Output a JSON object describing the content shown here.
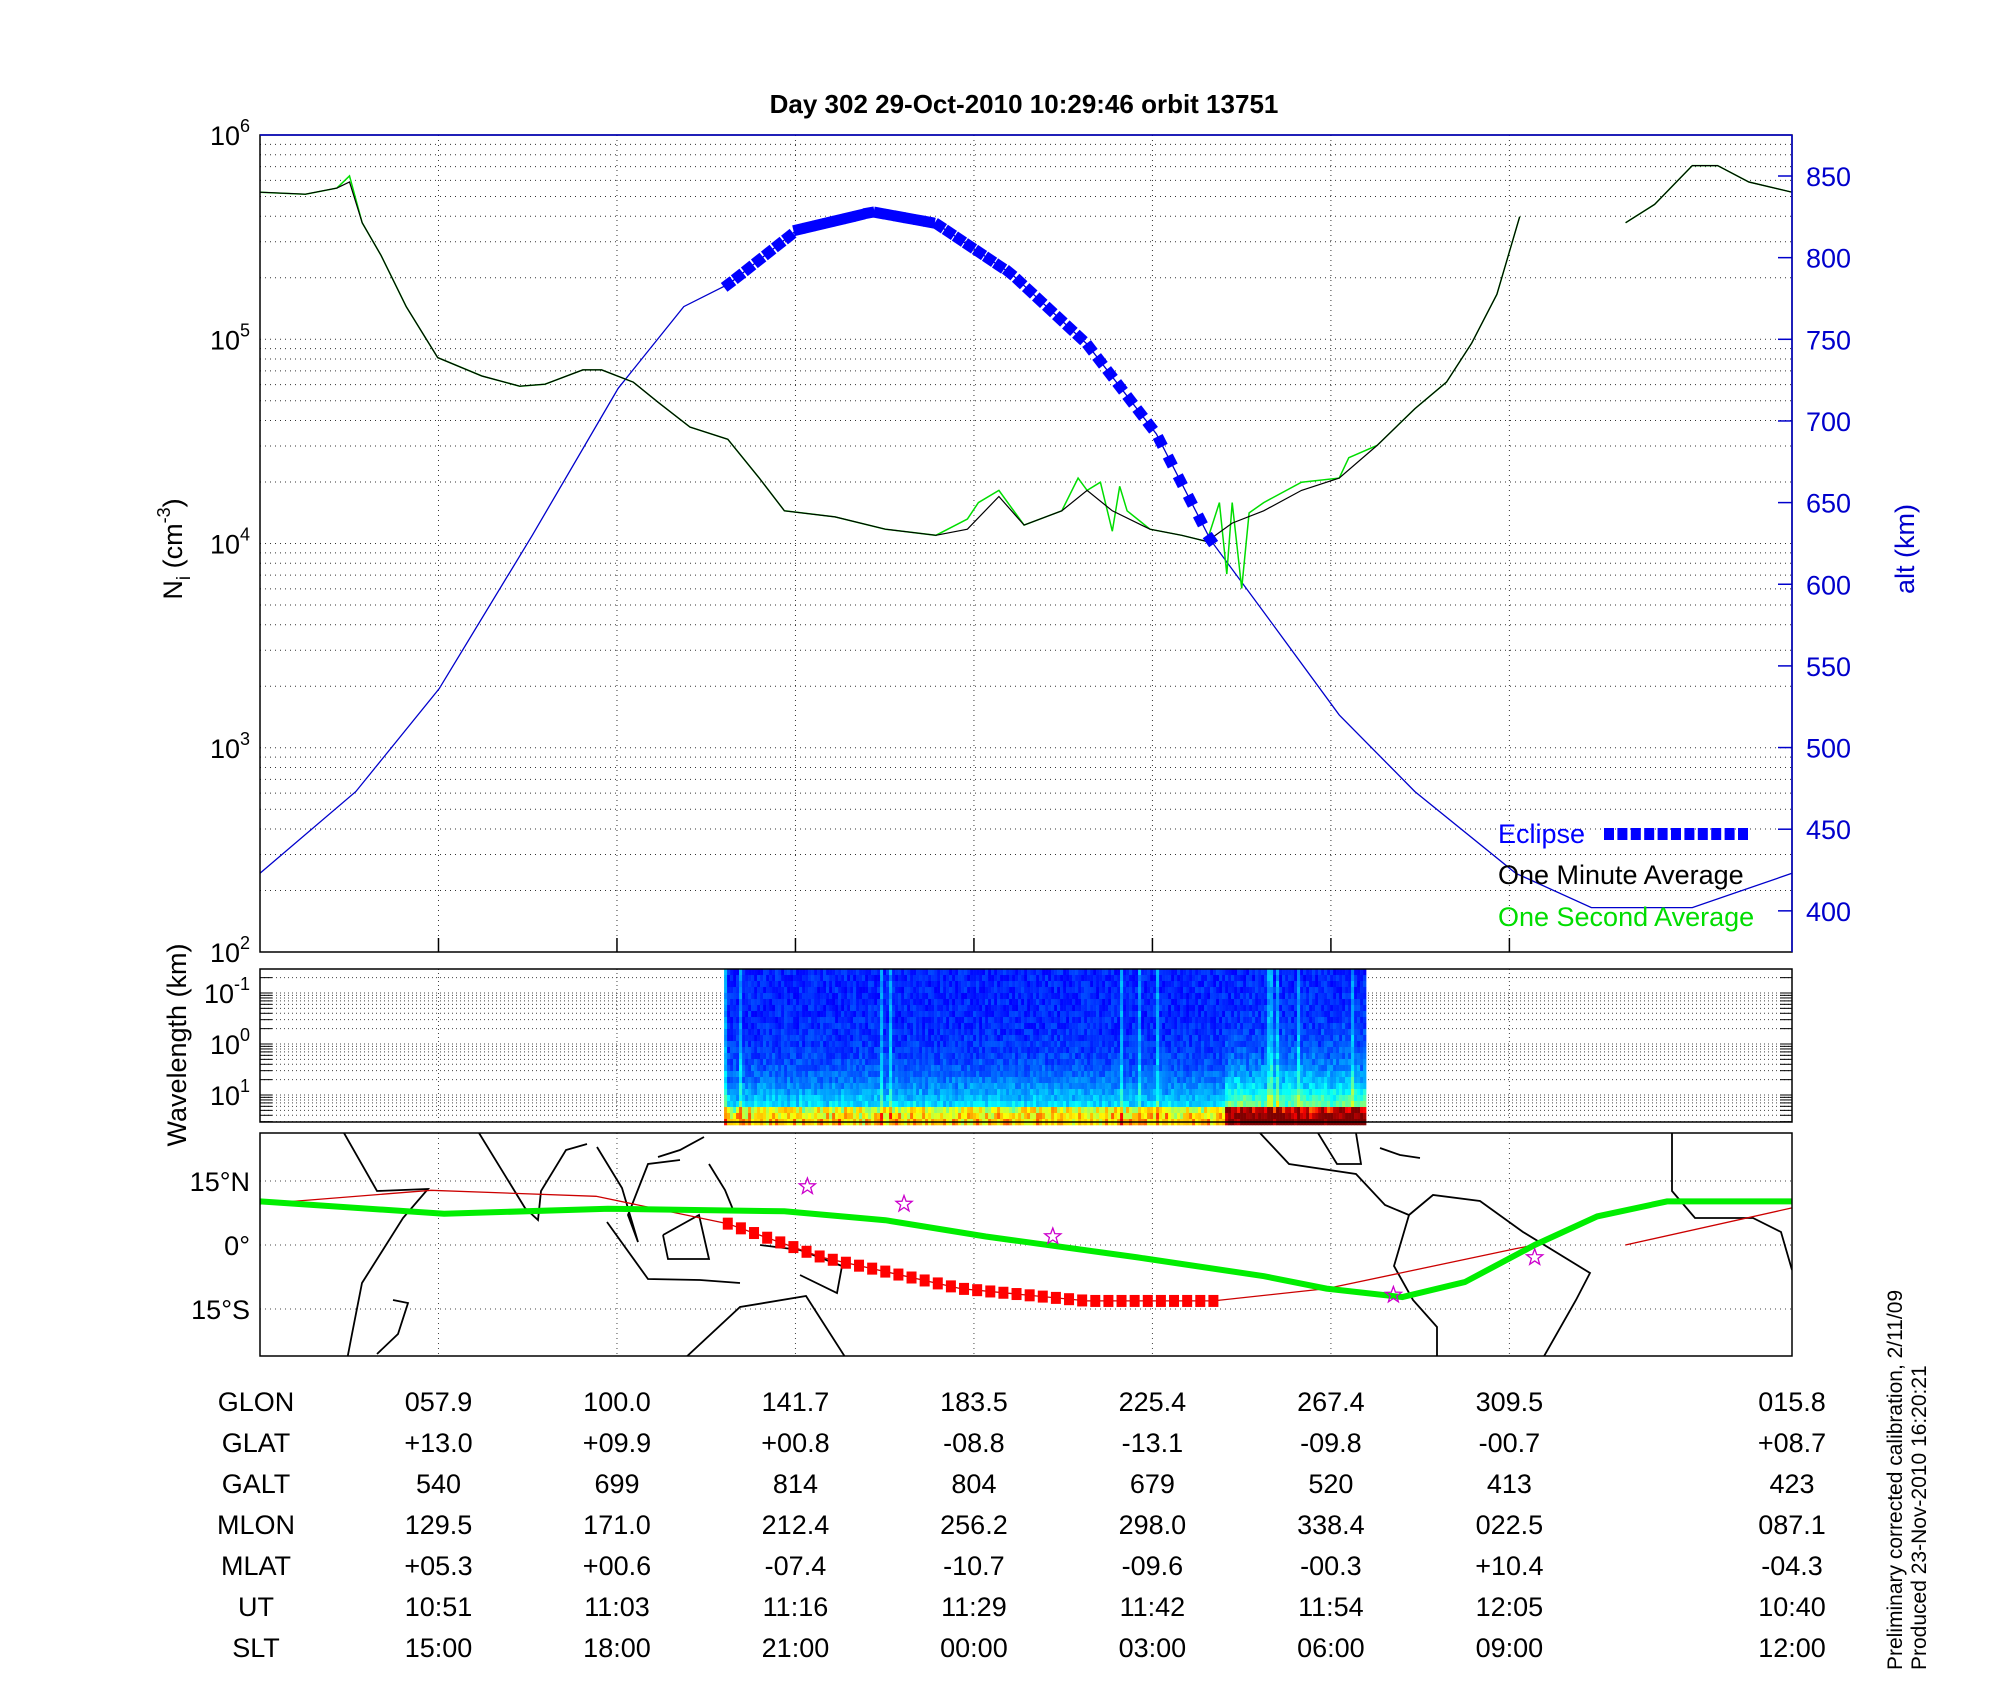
{
  "title": "Day 302  29-Oct-2010 10:29:46   orbit 13751",
  "footer": {
    "line1": "Preliminary corrected calibration, 2/11/09",
    "line2": "Produced 23-Nov-2010 16:20:21"
  },
  "colors": {
    "one_minute": "#000000",
    "one_second": "#00dd00",
    "altitude": "#0000cc",
    "eclipse": "#0000ff",
    "track": "#cc0000",
    "eclipse_track": "#ff0000",
    "mag_equator": "#00ee00",
    "stars": "#cc00cc"
  },
  "chart_data": [
    {
      "type": "line",
      "name": "density-altitude",
      "xlabel": "",
      "xlim": [
        0,
        103
      ],
      "xticks": [
        12,
        24,
        36,
        48,
        60,
        72,
        84
      ],
      "ylabel": "N_i (cm^-3)",
      "ylabel_parts": {
        "base": "N",
        "sub": "i",
        "unit": " (cm",
        "exp": "-3",
        "close": ")"
      },
      "yscale": "log",
      "ylim_log10": [
        2,
        6
      ],
      "yticks": [
        {
          "base": "10",
          "exp": "6"
        },
        {
          "base": "10",
          "exp": "5"
        },
        {
          "base": "10",
          "exp": "4"
        },
        {
          "base": "10",
          "exp": "3"
        },
        {
          "base": "10",
          "exp": "2"
        }
      ],
      "y2label": "alt (km)",
      "y2lim": [
        375,
        875
      ],
      "y2ticks": [
        "850",
        "800",
        "750",
        "700",
        "650",
        "600",
        "550",
        "500",
        "450",
        "400"
      ],
      "legend": {
        "position": "bottom-right",
        "eclipse": "Eclipse",
        "one_minute": "One Minute Average",
        "one_second": "One Second Average"
      },
      "series": [
        {
          "name": "One Minute Average",
          "x": [
            0,
            3.05,
            5.17,
            6.02,
            6.87,
            8.14,
            9.83,
            11.95,
            14.92,
            17.46,
            19.16,
            21.7,
            22.97,
            25.09,
            26.79,
            28.91,
            31.45,
            33.57,
            35.26,
            38.66,
            42.05,
            45.44,
            47.56,
            49.68,
            51.37,
            53.91,
            55.61,
            57.3,
            59.84,
            61.97,
            63.66,
            65.36,
            67.48,
            70.02,
            72.56,
            75.1,
            77.65,
            79.77,
            81.46,
            83.16,
            84.69,
            null,
            91.81,
            93.76,
            96.3,
            98.0,
            100.1,
            103
          ],
          "log10_ni": [
            5.72,
            5.71,
            5.74,
            5.77,
            5.57,
            5.41,
            5.16,
            4.91,
            4.82,
            4.77,
            4.78,
            4.85,
            4.85,
            4.79,
            4.69,
            4.57,
            4.51,
            4.32,
            4.16,
            4.13,
            4.07,
            4.04,
            4.07,
            4.23,
            4.09,
            4.16,
            4.26,
            4.16,
            4.07,
            4.04,
            4.01,
            4.1,
            4.16,
            4.26,
            4.32,
            4.48,
            4.66,
            4.79,
            4.98,
            5.22,
            5.6,
            null,
            5.57,
            5.66,
            5.85,
            5.85,
            5.77,
            5.72
          ]
        },
        {
          "name": "One Second Average",
          "x": [
            0,
            3.05,
            5.17,
            6.02,
            6.87,
            8.14,
            9.83,
            11.95,
            14.92,
            17.46,
            19.16,
            21.7,
            22.97,
            25.09,
            26.79,
            28.91,
            31.45,
            33.57,
            35.26,
            38.66,
            42.05,
            45.44,
            47.56,
            48.3,
            49.68,
            51.37,
            53.91,
            55.0,
            55.61,
            56.5,
            57.3,
            57.8,
            58.3,
            59.84,
            61.97,
            63.66,
            64.5,
            65.0,
            65.36,
            66.0,
            66.5,
            67.48,
            70.02,
            72.56,
            73.2,
            75.1,
            77.65,
            79.77,
            81.46,
            83.16,
            84.69,
            null,
            91.81,
            93.76,
            96.3,
            98.0,
            100.1,
            103
          ],
          "log10_ni": [
            5.72,
            5.71,
            5.74,
            5.8,
            5.57,
            5.41,
            5.16,
            4.91,
            4.82,
            4.77,
            4.78,
            4.85,
            4.85,
            4.79,
            4.69,
            4.57,
            4.51,
            4.32,
            4.16,
            4.13,
            4.07,
            4.04,
            4.12,
            4.2,
            4.26,
            4.09,
            4.16,
            4.32,
            4.26,
            4.3,
            4.06,
            4.28,
            4.16,
            4.07,
            4.04,
            4.01,
            4.2,
            3.85,
            4.2,
            3.78,
            4.15,
            4.2,
            4.3,
            4.32,
            4.42,
            4.48,
            4.66,
            4.79,
            4.98,
            5.22,
            5.6,
            null,
            5.57,
            5.66,
            5.85,
            5.85,
            5.77,
            5.72
          ]
        },
        {
          "name": "Altitude",
          "axis": "right",
          "x": [
            0,
            6.44,
            12.04,
            18.31,
            24.08,
            28.49,
            31.54,
            36.12,
            41.21,
            45.44,
            50.53,
            55.61,
            60.27,
            63.92,
            67.48,
            72.56,
            77.65,
            84.43,
            89.51,
            96.3,
            103
          ],
          "alt_km": [
            423,
            473,
            536,
            630,
            720,
            770,
            784,
            817,
            828,
            821,
            790,
            747,
            692,
            627,
            583,
            520,
            473,
            423,
            402,
            402,
            423
          ]
        }
      ],
      "eclipse_range_x": [
        31.5,
        63.9
      ]
    },
    {
      "type": "heatmap",
      "name": "spectrogram",
      "ylabel": "Wavelength (km)",
      "yticks": [
        {
          "base": "10",
          "exp": "-1"
        },
        {
          "base": "10",
          "exp": "0"
        },
        {
          "base": "10",
          "exp": "1"
        }
      ],
      "data_range_x": [
        31.2,
        74.2
      ],
      "colormap": "jet"
    },
    {
      "type": "line",
      "name": "ground-track-map",
      "ylim": [
        -26,
        26
      ],
      "yticks": [
        "15°N",
        "0°",
        "15°S"
      ],
      "ytick_values": [
        15,
        0,
        -15
      ],
      "series": [
        {
          "name": "Magnetic equator",
          "x": [
            0,
            12.38,
            23.4,
            35.26,
            42.05,
            48.8,
            59.0,
            67.5,
            71.7,
            76.8,
            81.0,
            85.7,
            89.9,
            94.6,
            103
          ],
          "lat": [
            10.2,
            7.3,
            8.5,
            7.9,
            5.8,
            2,
            -2.9,
            -7.3,
            -10.2,
            -12.2,
            -8.7,
            0,
            6.7,
            10.2,
            10.2
          ]
        },
        {
          "name": "Orbit track",
          "x": [
            0,
            11.5,
            22.6,
            31.45,
            37.8,
            47.1,
            55.6,
            64.1,
            71.7,
            84.4,
            85.7,
            null,
            91.8,
            103
          ],
          "lat": [
            9.6,
            12.8,
            11.4,
            5,
            -2.9,
            -10.2,
            -13.1,
            -13.1,
            -10.2,
            -0.9,
            0,
            null,
            0,
            8.7
          ]
        }
      ],
      "eclipse_range_x": [
        31.45,
        64.1
      ],
      "stars": {
        "x": [
          36.8,
          43.3,
          53.3,
          76.2,
          85.7
        ],
        "lat": [
          13.7,
          9.6,
          2,
          -11.7,
          -2.9
        ]
      }
    }
  ],
  "table": {
    "rows": [
      {
        "label": "GLON",
        "values": [
          "057.9",
          "100.0",
          "141.7",
          "183.5",
          "225.4",
          "267.4",
          "309.5",
          "015.8"
        ]
      },
      {
        "label": "GLAT",
        "values": [
          "+13.0",
          "+09.9",
          "+00.8",
          "-08.8",
          "-13.1",
          "-09.8",
          "-00.7",
          "+08.7"
        ]
      },
      {
        "label": "GALT",
        "values": [
          "540",
          "699",
          "814",
          "804",
          "679",
          "520",
          "413",
          "423"
        ]
      },
      {
        "label": "MLON",
        "values": [
          "129.5",
          "171.0",
          "212.4",
          "256.2",
          "298.0",
          "338.4",
          "022.5",
          "087.1"
        ]
      },
      {
        "label": "MLAT",
        "values": [
          "+05.3",
          "+00.6",
          "-07.4",
          "-10.7",
          "-09.6",
          "-00.3",
          "+10.4",
          "-04.3"
        ]
      },
      {
        "label": "UT",
        "values": [
          "10:51",
          "11:03",
          "11:16",
          "11:29",
          "11:42",
          "11:54",
          "12:05",
          "10:40"
        ]
      },
      {
        "label": "SLT",
        "values": [
          "15:00",
          "18:00",
          "21:00",
          "00:00",
          "03:00",
          "06:00",
          "09:00",
          "12:00"
        ]
      }
    ]
  }
}
